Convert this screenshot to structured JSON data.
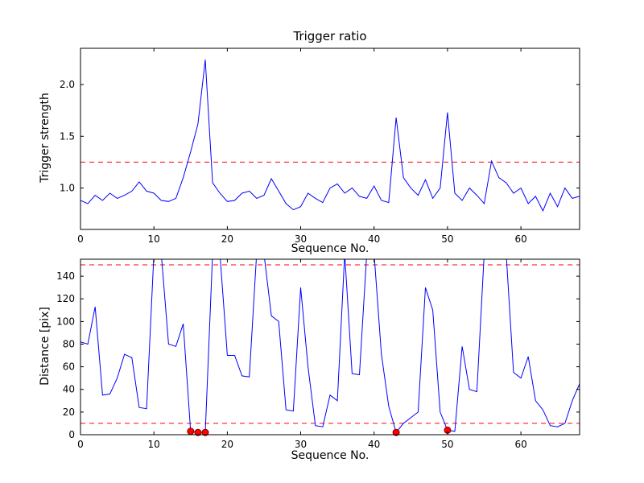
{
  "figure": {
    "background": "#ffffff",
    "axes_color": "#000000"
  },
  "chart_data": [
    {
      "type": "line",
      "title": "Trigger ratio",
      "xlabel": "Sequence No.",
      "ylabel": "Trigger strength",
      "xlim": [
        0,
        68
      ],
      "ylim": [
        0.6,
        2.35
      ],
      "xticks": [
        0,
        10,
        20,
        30,
        40,
        50,
        60
      ],
      "xtick_labels": [
        "0",
        "10",
        "20",
        "30",
        "40",
        "50",
        "60"
      ],
      "yticks": [
        1.0,
        1.5,
        2.0
      ],
      "ytick_labels": [
        "1.0",
        "1.5",
        "2.0"
      ],
      "grid": false,
      "legend": null,
      "line_color": "#0000ff",
      "threshold_color": "#ff0000",
      "threshold_lines": [
        1.25
      ],
      "x": [
        0,
        1,
        2,
        3,
        4,
        5,
        6,
        7,
        8,
        9,
        10,
        11,
        12,
        13,
        14,
        15,
        16,
        17,
        18,
        19,
        20,
        21,
        22,
        23,
        24,
        25,
        26,
        27,
        28,
        29,
        30,
        31,
        32,
        33,
        34,
        35,
        36,
        37,
        38,
        39,
        40,
        41,
        42,
        43,
        44,
        45,
        46,
        47,
        48,
        49,
        50,
        51,
        52,
        53,
        54,
        55,
        56,
        57,
        58,
        59,
        60,
        61,
        62,
        63,
        64,
        65,
        66,
        67,
        68
      ],
      "y": [
        0.88,
        0.85,
        0.93,
        0.88,
        0.95,
        0.9,
        0.93,
        0.97,
        1.06,
        0.97,
        0.95,
        0.88,
        0.87,
        0.9,
        1.1,
        1.35,
        1.62,
        2.24,
        1.05,
        0.95,
        0.87,
        0.88,
        0.95,
        0.97,
        0.9,
        0.93,
        1.09,
        0.97,
        0.85,
        0.79,
        0.82,
        0.95,
        0.9,
        0.86,
        1.0,
        1.04,
        0.95,
        1.0,
        0.92,
        0.9,
        1.02,
        0.88,
        0.86,
        1.68,
        1.1,
        1.0,
        0.93,
        1.08,
        0.9,
        1.0,
        1.73,
        0.95,
        0.88,
        1.0,
        0.93,
        0.85,
        1.26,
        1.1,
        1.05,
        0.95,
        1.0,
        0.85,
        0.92,
        0.78,
        0.95,
        0.82,
        1.0,
        0.9,
        0.92
      ]
    },
    {
      "type": "line",
      "title": "",
      "xlabel": "Sequence No.",
      "ylabel": "Distance [pix]",
      "xlim": [
        0,
        68
      ],
      "ylim": [
        0,
        155
      ],
      "xticks": [
        0,
        10,
        20,
        30,
        40,
        50,
        60
      ],
      "xtick_labels": [
        "0",
        "10",
        "20",
        "30",
        "40",
        "50",
        "60"
      ],
      "yticks": [
        0,
        20,
        40,
        60,
        80,
        100,
        120,
        140
      ],
      "ytick_labels": [
        "0",
        "20",
        "40",
        "60",
        "80",
        "100",
        "120",
        "140"
      ],
      "grid": false,
      "legend": null,
      "line_color": "#0000ff",
      "threshold_color": "#ff0000",
      "threshold_lines": [
        150,
        10
      ],
      "marker_color": "#ff0000",
      "markers": [
        {
          "x": 15,
          "y": 3
        },
        {
          "x": 16,
          "y": 2
        },
        {
          "x": 17,
          "y": 2
        },
        {
          "x": 43,
          "y": 2
        },
        {
          "x": 50,
          "y": 4
        }
      ],
      "x": [
        0,
        1,
        2,
        3,
        4,
        5,
        6,
        7,
        8,
        9,
        10,
        11,
        12,
        13,
        14,
        15,
        16,
        17,
        18,
        19,
        20,
        21,
        22,
        23,
        24,
        25,
        26,
        27,
        28,
        29,
        30,
        31,
        32,
        33,
        34,
        35,
        36,
        37,
        38,
        39,
        40,
        41,
        42,
        43,
        44,
        45,
        46,
        47,
        48,
        49,
        50,
        51,
        52,
        53,
        54,
        55,
        56,
        57,
        58,
        59,
        60,
        61,
        62,
        63,
        64,
        65,
        66,
        67,
        68
      ],
      "y": [
        82,
        80,
        113,
        35,
        36,
        50,
        71,
        68,
        24,
        23,
        160,
        160,
        80,
        78,
        98,
        3,
        2,
        2,
        160,
        160,
        70,
        70,
        52,
        51,
        160,
        160,
        105,
        100,
        22,
        21,
        130,
        60,
        8,
        7,
        35,
        30,
        160,
        54,
        53,
        160,
        160,
        71,
        25,
        2,
        10,
        15,
        20,
        130,
        110,
        20,
        4,
        3,
        78,
        40,
        38,
        160,
        160,
        160,
        160,
        55,
        50,
        69,
        30,
        22,
        8,
        7,
        10,
        30,
        45
      ]
    }
  ]
}
